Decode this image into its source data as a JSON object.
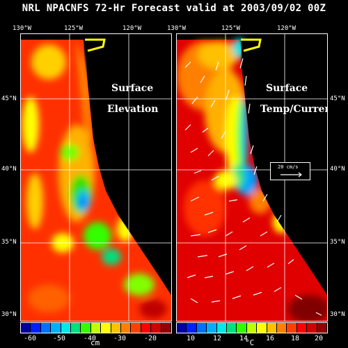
{
  "title": "NRL NPACNFS 72-Hr Forecast valid at 2003/09/02 00Z",
  "lon_labels": [
    "130°W",
    "125°W",
    "120°W"
  ],
  "lat_labels": [
    "45°N",
    "40°N",
    "35°N",
    "30°N"
  ],
  "left_panel": {
    "line1": "Surface",
    "line2": "Elevation",
    "colorbar_ticks": [
      "-60",
      "-50",
      "-40",
      "-30",
      "-20"
    ],
    "unit": "cm"
  },
  "right_panel": {
    "line1": "Surface",
    "line2": "Temp/Current",
    "colorbar_ticks": [
      "10",
      "12",
      "14",
      "16",
      "18",
      "20"
    ],
    "unit": "°C",
    "vector_scale_label": "20 cm/s"
  },
  "colors": {
    "colorbar": [
      "#0000a0",
      "#0020ff",
      "#0070ff",
      "#00b0ff",
      "#00e8e8",
      "#00e080",
      "#30ff00",
      "#c0ff00",
      "#ffff00",
      "#ffc000",
      "#ff8000",
      "#ff4000",
      "#ff0000",
      "#d00000",
      "#900000"
    ]
  }
}
